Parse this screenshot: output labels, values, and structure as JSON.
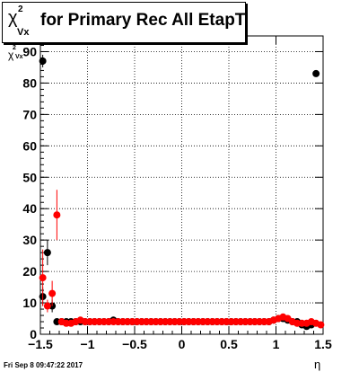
{
  "title": {
    "symbol": "χ",
    "superscript": "2",
    "subscript": "Vx",
    "text": "for Primary Rec All EtapT"
  },
  "axes": {
    "xlabel": "η",
    "ylabel_symbol": "χ",
    "ylabel_superscript": "2",
    "ylabel_subscript": "Vx"
  },
  "timestamp": "Fri Sep  8 09:47:22 2017",
  "colors": {
    "series_black": "#000000",
    "series_red": "#ff0000",
    "grid": "#000000",
    "background": "#ffffff"
  },
  "chart_data": {
    "type": "scatter",
    "title": "χ²Vx for Primary Rec All EtapT",
    "xlabel": "η",
    "ylabel": "χ²Vx",
    "xlim": [
      -1.5,
      1.5
    ],
    "ylim": [
      0,
      95
    ],
    "grid": true,
    "x_ticks": [
      -1.5,
      -1,
      -0.5,
      0,
      0.5,
      1,
      1.5
    ],
    "x_tick_labels": [
      "−1.5",
      "−1",
      "−0.5",
      "0",
      "0.5",
      "1",
      "1.5"
    ],
    "y_ticks": [
      0,
      10,
      20,
      30,
      40,
      50,
      60,
      70,
      80,
      90
    ],
    "y_tick_labels": [
      "0",
      "10",
      "20",
      "30",
      "40",
      "50",
      "60",
      "70",
      "80",
      "90"
    ],
    "series": [
      {
        "color": "#000000",
        "points": [
          [
            -1.475,
            87,
            2
          ],
          [
            -1.475,
            12,
            3
          ],
          [
            -1.425,
            26,
            4
          ],
          [
            -1.375,
            9,
            2
          ],
          [
            -1.325,
            4,
            1
          ],
          [
            -1.275,
            4,
            1
          ],
          [
            -1.225,
            4,
            1
          ],
          [
            -1.175,
            4,
            1
          ],
          [
            -1.125,
            4,
            1
          ],
          [
            -1.075,
            4,
            1
          ],
          [
            -1.025,
            4,
            1
          ],
          [
            -0.975,
            4,
            1
          ],
          [
            -0.925,
            4,
            1
          ],
          [
            -0.875,
            4,
            1
          ],
          [
            -0.825,
            4,
            1
          ],
          [
            -0.775,
            4,
            1
          ],
          [
            -0.725,
            4.5,
            1
          ],
          [
            -0.675,
            4,
            1
          ],
          [
            -0.625,
            4,
            1
          ],
          [
            -0.575,
            4,
            1
          ],
          [
            -0.525,
            4,
            1
          ],
          [
            -0.475,
            4,
            1
          ],
          [
            -0.425,
            4,
            1
          ],
          [
            -0.375,
            4,
            1
          ],
          [
            -0.325,
            4,
            1
          ],
          [
            -0.275,
            4,
            1
          ],
          [
            -0.225,
            4,
            1
          ],
          [
            -0.175,
            4,
            1
          ],
          [
            -0.125,
            4,
            1
          ],
          [
            -0.075,
            4,
            1
          ],
          [
            -0.025,
            4,
            1
          ],
          [
            0.025,
            4,
            1
          ],
          [
            0.075,
            4,
            1
          ],
          [
            0.125,
            4,
            1
          ],
          [
            0.175,
            4,
            1
          ],
          [
            0.225,
            4,
            1
          ],
          [
            0.275,
            4,
            1
          ],
          [
            0.325,
            4,
            1
          ],
          [
            0.375,
            4,
            1
          ],
          [
            0.425,
            4,
            1
          ],
          [
            0.475,
            4,
            1
          ],
          [
            0.525,
            4,
            1
          ],
          [
            0.575,
            4,
            1
          ],
          [
            0.625,
            4,
            1
          ],
          [
            0.675,
            4,
            1
          ],
          [
            0.725,
            4,
            1
          ],
          [
            0.775,
            4,
            1
          ],
          [
            0.825,
            4,
            1
          ],
          [
            0.875,
            4,
            1
          ],
          [
            0.925,
            4,
            1
          ],
          [
            0.975,
            4.5,
            1
          ],
          [
            1.025,
            5,
            1
          ],
          [
            1.075,
            5,
            1
          ],
          [
            1.125,
            4.5,
            1
          ],
          [
            1.175,
            4,
            1
          ],
          [
            1.225,
            4,
            1
          ],
          [
            1.275,
            3,
            1
          ],
          [
            1.325,
            2.5,
            1
          ],
          [
            1.375,
            3,
            1
          ],
          [
            1.425,
            83,
            0
          ]
        ]
      },
      {
        "color": "#ff0000",
        "points": [
          [
            -1.475,
            18,
            9
          ],
          [
            -1.425,
            9,
            2
          ],
          [
            -1.375,
            13,
            4
          ],
          [
            -1.325,
            38,
            8
          ],
          [
            -1.275,
            4,
            1
          ],
          [
            -1.225,
            3.5,
            1
          ],
          [
            -1.175,
            3.5,
            1
          ],
          [
            -1.125,
            4,
            1
          ],
          [
            -1.075,
            4.5,
            1
          ],
          [
            -1.025,
            4,
            1
          ],
          [
            -0.975,
            4,
            1
          ],
          [
            -0.925,
            4,
            1
          ],
          [
            -0.875,
            4,
            1
          ],
          [
            -0.825,
            4,
            1
          ],
          [
            -0.775,
            4,
            1
          ],
          [
            -0.725,
            4,
            1
          ],
          [
            -0.675,
            4,
            1
          ],
          [
            -0.625,
            4,
            1
          ],
          [
            -0.575,
            4,
            1
          ],
          [
            -0.525,
            4,
            1
          ],
          [
            -0.475,
            4,
            1
          ],
          [
            -0.425,
            4,
            1
          ],
          [
            -0.375,
            4,
            1
          ],
          [
            -0.325,
            4,
            1
          ],
          [
            -0.275,
            4,
            1
          ],
          [
            -0.225,
            4,
            1
          ],
          [
            -0.175,
            4,
            1
          ],
          [
            -0.125,
            4,
            1
          ],
          [
            -0.075,
            4,
            1
          ],
          [
            -0.025,
            4,
            1
          ],
          [
            0.025,
            4,
            1
          ],
          [
            0.075,
            4,
            1
          ],
          [
            0.125,
            4,
            1
          ],
          [
            0.175,
            4,
            1
          ],
          [
            0.225,
            4,
            1
          ],
          [
            0.275,
            4,
            1
          ],
          [
            0.325,
            4,
            1
          ],
          [
            0.375,
            4,
            1
          ],
          [
            0.425,
            4,
            1
          ],
          [
            0.475,
            4,
            1
          ],
          [
            0.525,
            4,
            1
          ],
          [
            0.575,
            4,
            1
          ],
          [
            0.625,
            4,
            1
          ],
          [
            0.675,
            4,
            1
          ],
          [
            0.725,
            4,
            1
          ],
          [
            0.775,
            4,
            1
          ],
          [
            0.825,
            4,
            1
          ],
          [
            0.875,
            4,
            1
          ],
          [
            0.925,
            4,
            1
          ],
          [
            0.975,
            4.5,
            1
          ],
          [
            1.025,
            5,
            1
          ],
          [
            1.075,
            5.5,
            1
          ],
          [
            1.125,
            5,
            1
          ],
          [
            1.175,
            4,
            1
          ],
          [
            1.225,
            3.5,
            1
          ],
          [
            1.275,
            3.5,
            1
          ],
          [
            1.325,
            3.5,
            1
          ],
          [
            1.375,
            4,
            1
          ],
          [
            1.425,
            3.5,
            1
          ],
          [
            1.475,
            3,
            1
          ]
        ]
      }
    ]
  }
}
